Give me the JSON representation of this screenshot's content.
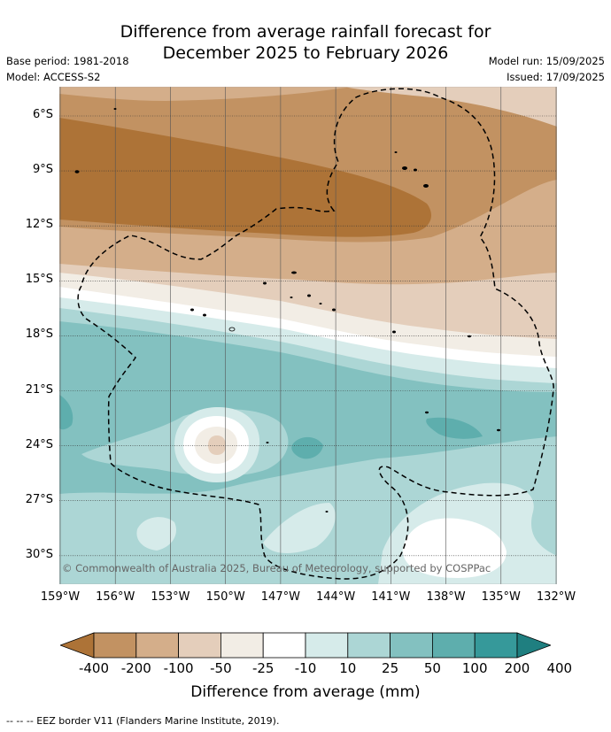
{
  "header": {
    "title_line1": "Difference from average rainfall forecast for",
    "title_line2": "December 2025 to February 2026",
    "base_period": "Base period: 1981-2018",
    "model": "Model: ACCESS-S2",
    "model_run": "Model run: 15/09/2025",
    "issued": "Issued: 17/09/2025"
  },
  "map": {
    "lat_labels": [
      "6°S",
      "9°S",
      "12°S",
      "15°S",
      "18°S",
      "21°S",
      "24°S",
      "27°S",
      "30°S"
    ],
    "lon_labels": [
      "159°W",
      "156°W",
      "153°W",
      "150°W",
      "147°W",
      "144°W",
      "141°W",
      "138°W",
      "135°W",
      "132°W"
    ],
    "copyright": "© Commonwealth of Australia 2025, Bureau of Meteorology, supported by COSPPac"
  },
  "colorbar": {
    "ticks": [
      "-400",
      "-200",
      "-100",
      "-50",
      "-25",
      "-10",
      "10",
      "25",
      "50",
      "100",
      "200",
      "400"
    ],
    "colors": [
      "#ad7337",
      "#c29262",
      "#d4ae8a",
      "#e4cebb",
      "#f2ede5",
      "#ffffff",
      "#d6ebea",
      "#acd6d5",
      "#83c1c0",
      "#5eaead",
      "#36999a",
      "#1f7f80"
    ],
    "label": "Difference from average (mm)"
  },
  "footer": {
    "eez_note": "--  --  -- EEZ border V11 (Flanders Marine Institute, 2019)."
  }
}
